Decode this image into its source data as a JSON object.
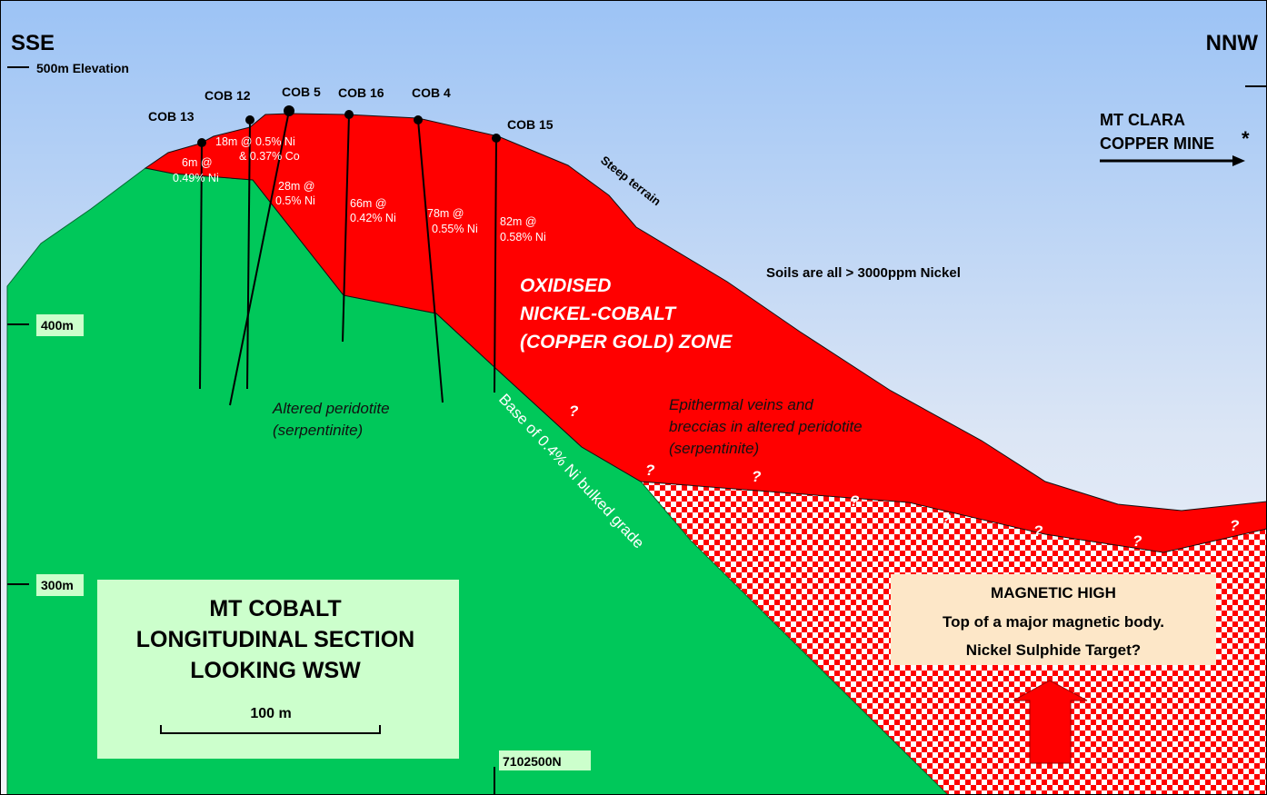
{
  "orientation": {
    "left": "SSE",
    "right": "NNW"
  },
  "elevations": {
    "top": "500m Elevation",
    "mid": "400m",
    "low": "300m"
  },
  "holes": [
    {
      "name": "COB 13",
      "intercept": [
        "6m @",
        "0.49% Ni"
      ]
    },
    {
      "name": "COB 12",
      "intercept": [
        "18m @ 0.5% Ni",
        "& 0.37% Co"
      ]
    },
    {
      "name": "COB 5",
      "intercept": [
        "28m @",
        "0.5% Ni"
      ]
    },
    {
      "name": "COB 16",
      "intercept": [
        "66m @",
        "0.42% Ni"
      ]
    },
    {
      "name": "COB 4",
      "intercept": [
        "78m @",
        "0.55% Ni"
      ]
    },
    {
      "name": "COB 15",
      "intercept": [
        "82m @",
        "0.58% Ni"
      ]
    }
  ],
  "mine": {
    "line1": "MT CLARA",
    "line2": "COPPER MINE",
    "star": "*"
  },
  "labels": {
    "steep": "Steep terrain",
    "soils": "Soils are all > 3000ppm Nickel",
    "zone": [
      "OXIDISED",
      "NICKEL-COBALT",
      "(COPPER GOLD) ZONE"
    ],
    "peridotite": [
      "Altered peridotite",
      "(serpentinite)"
    ],
    "veins": [
      "Epithermal veins and",
      "breccias in altered peridotite",
      "(serpentinite)"
    ],
    "base": "Base of 0.4% Ni bulked grade",
    "question": "?"
  },
  "title_box": {
    "lines": [
      "MT COBALT",
      "LONGITUDINAL SECTION",
      "LOOKING WSW"
    ],
    "scale": "100 m"
  },
  "magnetic": {
    "line1": "MAGNETIC HIGH",
    "line2": "Top of a major magnetic body.",
    "line3": "Nickel Sulphide Target?"
  },
  "northing": "7102500N",
  "colors": {
    "sky_top": "#9cc3f5",
    "sky_bottom": "#f2f5fa",
    "green": "#00c85a",
    "red": "#ff0000",
    "box": "#ccffcc",
    "magnetic_box": "#fde7c8"
  }
}
